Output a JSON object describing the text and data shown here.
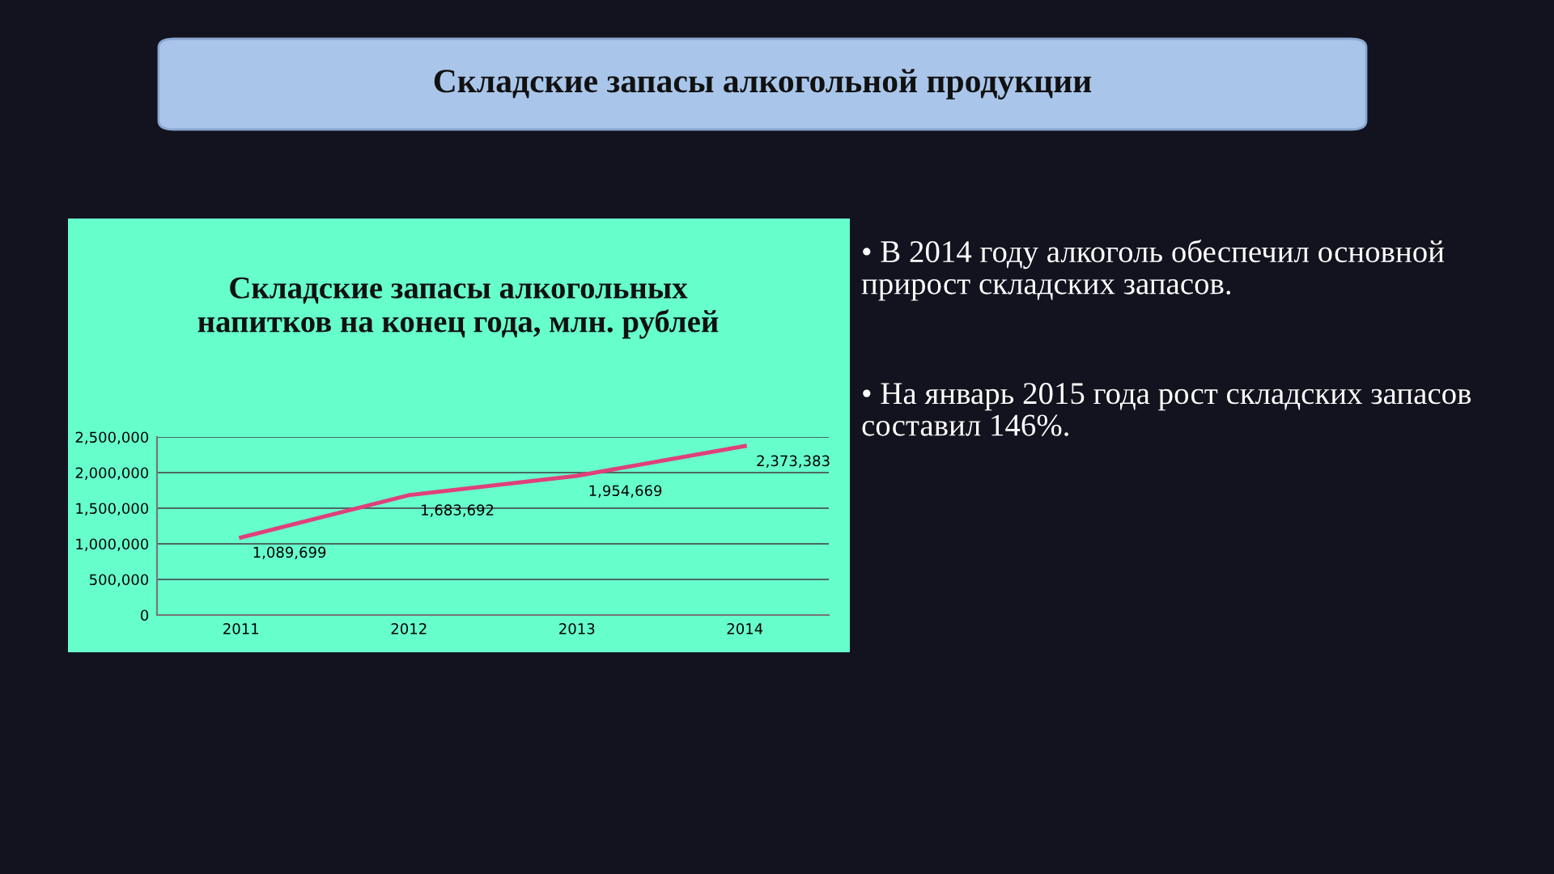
{
  "chart_data": {
    "type": "line",
    "title": "Складские запасы алкогольных напитков на конец года, млн. рублей",
    "categories": [
      "2011",
      "2012",
      "2013",
      "2014"
    ],
    "series": [
      {
        "color": "#e0407a",
        "values": [
          1089699,
          1683692,
          1954669,
          2373383
        ]
      }
    ],
    "value_labels": [
      "1,089,699",
      "1,683,692",
      "1,954,669",
      "2,373,383"
    ],
    "ylim": [
      0,
      2500000
    ],
    "yticks": [
      {
        "value": 0,
        "label": "0"
      },
      {
        "value": 500000,
        "label": "500,000"
      },
      {
        "value": 1000000,
        "label": "1,000,000"
      },
      {
        "value": 1500000,
        "label": "1,500,000"
      },
      {
        "value": 2000000,
        "label": "2,000,000"
      },
      {
        "value": 2500000,
        "label": "2,500,000"
      }
    ],
    "grid": "y",
    "legend": false,
    "marker": "none",
    "line_style": "solid",
    "annotations": [
      "Складские запасы алкогольной продукции",
      "• В 2014 году алкоголь обеспечил основной прирост складских запасов.",
      "• На январь 2015 года рост складских запасов составил 146%."
    ]
  }
}
